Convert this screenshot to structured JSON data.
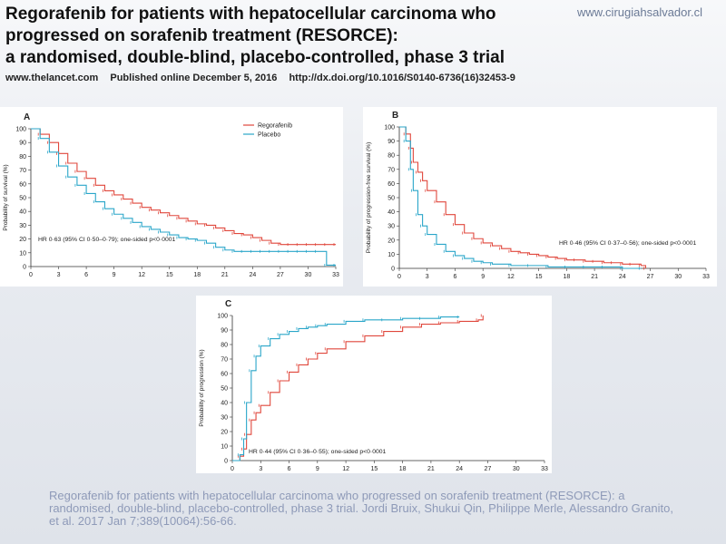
{
  "header": {
    "title_lines": [
      "Regorafenib for patients with hepatocellular carcinoma who",
      "progressed on sorafenib treatment (RESORCE):",
      "a randomised, double-blind, placebo-controlled, phase 3 trial"
    ],
    "site": "www.cirugiahsalvador.cl",
    "journal": "www.thelancet.com",
    "published": "Published online December 5, 2016",
    "doi": "http://dx.doi.org/10.1016/S0140-6736(16)32453-9"
  },
  "caption": "Regorafenib for patients with hepatocellular carcinoma who progressed on sorafenib treatment (RESORCE): a randomised, double-blind, placebo-controlled, phase 3 trial. Jordi Bruix, Shukui Qin, Philippe Merle, Alessandro Granito, et al.  2017 Jan 7;389(10064):56-66.",
  "colors": {
    "regorafenib": "#e0473c",
    "placebo": "#2aa6c9"
  },
  "chart_data": [
    {
      "type": "line",
      "panel": "A",
      "ylabel": "Probability of survival (%)",
      "xlim": [
        0,
        33
      ],
      "ylim": [
        0,
        100
      ],
      "xticks": [
        "0",
        "3",
        "6",
        "9",
        "12",
        "15",
        "18",
        "21",
        "24",
        "27",
        "30",
        "33"
      ],
      "yticks": [
        "0",
        "10",
        "20",
        "30",
        "40",
        "50",
        "60",
        "70",
        "80",
        "90",
        "100"
      ],
      "legend": "top-right",
      "annotation": "HR 0·63 (95% CI 0·50–0·79); one-sided p<0·0001",
      "series": [
        {
          "name": "Regorafenib",
          "color_key": "regorafenib",
          "x": [
            0,
            1,
            2,
            3,
            4,
            5,
            6,
            7,
            8,
            9,
            10,
            11,
            12,
            13,
            14,
            15,
            16,
            17,
            18,
            19,
            20,
            21,
            22,
            23,
            24,
            25,
            26,
            27,
            28,
            29,
            30,
            31,
            32,
            33
          ],
          "y": [
            100,
            96,
            90,
            82,
            75,
            69,
            64,
            59,
            55,
            52,
            49,
            46,
            43,
            41,
            39,
            37,
            35,
            33,
            31,
            30,
            28,
            26,
            24,
            23,
            21,
            19,
            17,
            16,
            16,
            16,
            16,
            16,
            16,
            16
          ]
        },
        {
          "name": "Placebo",
          "color_key": "placebo",
          "x": [
            0,
            1,
            2,
            3,
            4,
            5,
            6,
            7,
            8,
            9,
            10,
            11,
            12,
            13,
            14,
            15,
            16,
            17,
            18,
            19,
            20,
            21,
            22,
            23,
            24,
            25,
            26,
            27,
            28,
            29,
            30,
            31,
            32,
            33
          ],
          "y": [
            100,
            93,
            83,
            73,
            65,
            59,
            53,
            47,
            42,
            38,
            35,
            32,
            29,
            27,
            25,
            23,
            21,
            20,
            19,
            17,
            14,
            12,
            11,
            11,
            11,
            11,
            11,
            11,
            11,
            11,
            11,
            11,
            1,
            1
          ]
        }
      ]
    },
    {
      "type": "line",
      "panel": "B",
      "ylabel": "Probability of progression-free survival (%)",
      "xlim": [
        0,
        33
      ],
      "ylim": [
        0,
        100
      ],
      "xticks": [
        "0",
        "3",
        "6",
        "9",
        "12",
        "15",
        "18",
        "21",
        "24",
        "27",
        "30",
        "33"
      ],
      "yticks": [
        "0",
        "10",
        "20",
        "30",
        "40",
        "50",
        "60",
        "70",
        "80",
        "90",
        "100"
      ],
      "annotation": "HR 0·46 (95% CI 0·37–0·56); one-sided p<0·0001",
      "series": [
        {
          "name": "Regorafenib",
          "color_key": "regorafenib",
          "x": [
            0,
            0.7,
            1.2,
            1.5,
            2,
            2.5,
            3,
            4,
            5,
            6,
            7,
            8,
            9,
            10,
            11,
            12,
            13,
            14,
            15,
            16,
            17,
            18,
            19,
            20,
            21,
            22,
            23,
            24,
            25,
            26,
            26.5
          ],
          "y": [
            100,
            95,
            85,
            75,
            68,
            62,
            55,
            47,
            38,
            31,
            25,
            21,
            18,
            16,
            14,
            12,
            11,
            10,
            9,
            8,
            7,
            6,
            6,
            5,
            5,
            4,
            4,
            3,
            3,
            2,
            0
          ]
        },
        {
          "name": "Placebo",
          "color_key": "placebo",
          "x": [
            0,
            0.7,
            1.2,
            1.5,
            2,
            2.5,
            3,
            4,
            5,
            6,
            7,
            8,
            9,
            10,
            12,
            14,
            16,
            18,
            20,
            22,
            24,
            26
          ],
          "y": [
            100,
            90,
            70,
            55,
            38,
            30,
            24,
            17,
            12,
            9,
            7,
            5,
            4,
            3,
            2,
            2,
            1,
            1,
            1,
            1,
            0,
            0
          ]
        }
      ]
    },
    {
      "type": "line",
      "panel": "C",
      "ylabel": "Probability of progression (%)",
      "xlim": [
        0,
        33
      ],
      "ylim": [
        0,
        100
      ],
      "xticks": [
        "0",
        "3",
        "6",
        "9",
        "12",
        "15",
        "18",
        "21",
        "24",
        "27",
        "30",
        "33"
      ],
      "yticks": [
        "0",
        "10",
        "20",
        "30",
        "40",
        "50",
        "60",
        "70",
        "80",
        "90",
        "100"
      ],
      "annotation": "HR 0·44 (95% CI 0·36–0·55); one-sided p<0·0001",
      "series": [
        {
          "name": "Regorafenib",
          "color_key": "regorafenib",
          "x": [
            0,
            0.8,
            1.2,
            1.5,
            2,
            2.5,
            3,
            4,
            5,
            6,
            7,
            8,
            9,
            10,
            12,
            14,
            16,
            18,
            20,
            22,
            24,
            26,
            26.5
          ],
          "y": [
            0,
            3,
            8,
            18,
            28,
            33,
            38,
            47,
            55,
            61,
            66,
            70,
            74,
            77,
            82,
            86,
            89,
            92,
            94,
            95,
            96,
            97,
            100
          ]
        },
        {
          "name": "Placebo",
          "color_key": "placebo",
          "x": [
            0,
            0.8,
            1.2,
            1.5,
            2,
            2.5,
            3,
            4,
            5,
            6,
            7,
            8,
            9,
            10,
            12,
            14,
            16,
            18,
            20,
            22,
            24
          ],
          "y": [
            0,
            4,
            15,
            40,
            62,
            72,
            79,
            84,
            87,
            89,
            91,
            92,
            93,
            94,
            96,
            97,
            97,
            98,
            98,
            99,
            99
          ]
        }
      ]
    }
  ]
}
